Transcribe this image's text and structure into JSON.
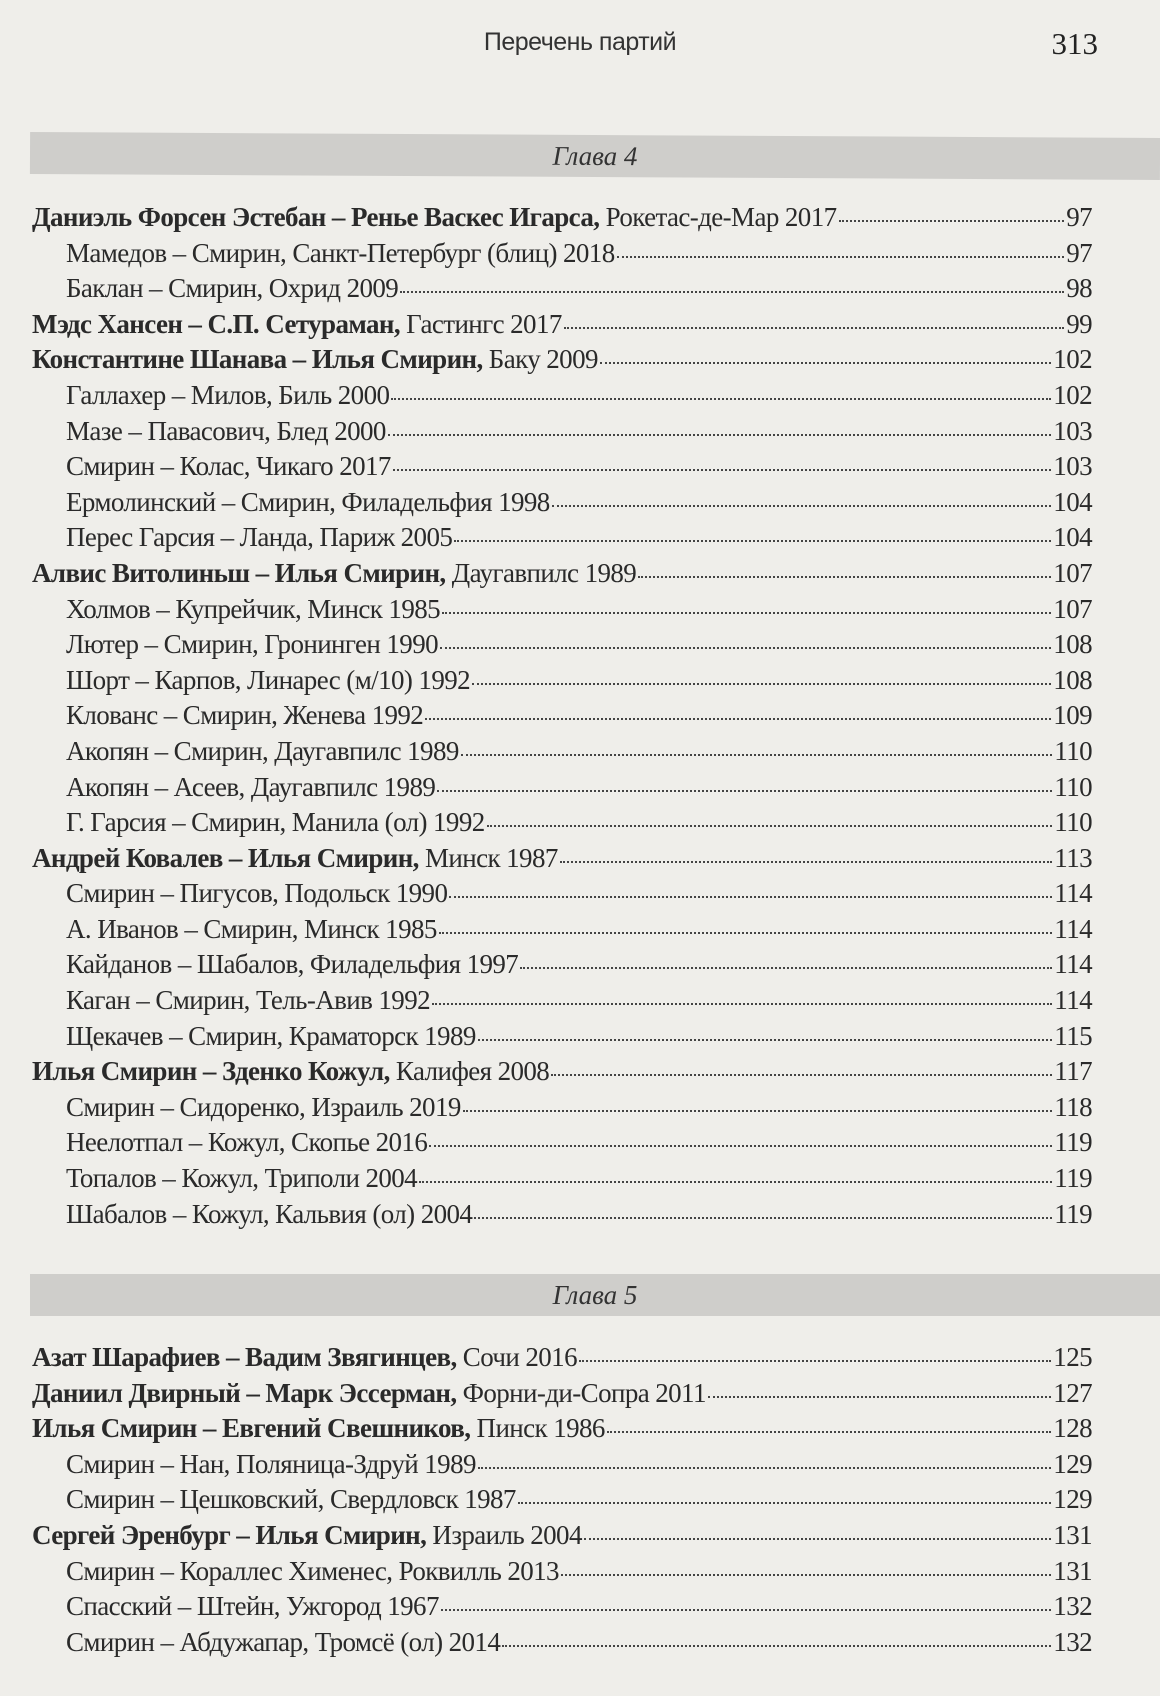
{
  "header": {
    "title": "Перечень партий",
    "page_number": "313"
  },
  "chapters": [
    {
      "title": "Глава 4",
      "entries": [
        {
          "main": true,
          "players": "Даниэль Форсен Эстебан – Ренье Васкес Игарса,",
          "event": "Рокетас-де-Мар 2017",
          "page": "97"
        },
        {
          "main": false,
          "players": "",
          "event": "Мамедов – Смирин, Санкт-Петербург (блиц) 2018",
          "page": "97"
        },
        {
          "main": false,
          "players": "",
          "event": "Баклан – Смирин, Охрид 2009",
          "page": "98"
        },
        {
          "main": true,
          "players": "Мэдс Хансен – С.П. Сетураман,",
          "event": "Гастингс 2017",
          "page": "99"
        },
        {
          "main": true,
          "players": "Константине Шанава – Илья Смирин,",
          "event": "Баку 2009",
          "page": "102"
        },
        {
          "main": false,
          "players": "",
          "event": "Галлахер – Милов, Биль 2000",
          "page": "102"
        },
        {
          "main": false,
          "players": "",
          "event": "Мазе – Павасович, Блед 2000",
          "page": "103"
        },
        {
          "main": false,
          "players": "",
          "event": "Смирин – Колас, Чикаго 2017",
          "page": "103"
        },
        {
          "main": false,
          "players": "",
          "event": "Ермолинский – Смирин, Филадельфия 1998",
          "page": "104"
        },
        {
          "main": false,
          "players": "",
          "event": "Перес Гарсия – Ланда, Париж 2005",
          "page": "104"
        },
        {
          "main": true,
          "players": "Алвис Витолиньш – Илья Смирин,",
          "event": "Даугавпилс 1989",
          "page": "107"
        },
        {
          "main": false,
          "players": "",
          "event": "Холмов – Купрейчик, Минск 1985",
          "page": "107"
        },
        {
          "main": false,
          "players": "",
          "event": "Лютер – Смирин, Гронинген 1990",
          "page": "108"
        },
        {
          "main": false,
          "players": "",
          "event": "Шорт – Карпов, Линарес (м/10) 1992",
          "page": "108"
        },
        {
          "main": false,
          "players": "",
          "event": "Клованс – Смирин, Женева 1992",
          "page": "109"
        },
        {
          "main": false,
          "players": "",
          "event": "Акопян – Смирин, Даугавпилс 1989",
          "page": "110"
        },
        {
          "main": false,
          "players": "",
          "event": "Акопян – Асеев, Даугавпилс 1989",
          "page": "110"
        },
        {
          "main": false,
          "players": "",
          "event": "Г. Гарсия – Смирин, Манила (ол) 1992",
          "page": "110"
        },
        {
          "main": true,
          "players": "Андрей Ковалев – Илья Смирин,",
          "event": "Минск 1987",
          "page": "113"
        },
        {
          "main": false,
          "players": "",
          "event": "Смирин – Пигусов, Подольск 1990",
          "page": "114"
        },
        {
          "main": false,
          "players": "",
          "event": "А. Иванов – Смирин, Минск 1985",
          "page": "114"
        },
        {
          "main": false,
          "players": "",
          "event": "Кайданов – Шабалов, Филадельфия 1997",
          "page": "114"
        },
        {
          "main": false,
          "players": "",
          "event": "Каган – Смирин, Тель-Авив 1992",
          "page": "114"
        },
        {
          "main": false,
          "players": "",
          "event": "Щекачев – Смирин, Краматорск 1989",
          "page": "115"
        },
        {
          "main": true,
          "players": "Илья Смирин – Зденко Кожул,",
          "event": "Калифея 2008",
          "page": "117"
        },
        {
          "main": false,
          "players": "",
          "event": "Смирин – Сидоренко, Израиль 2019",
          "page": "118"
        },
        {
          "main": false,
          "players": "",
          "event": "Неелотпал – Кожул, Скопье 2016",
          "page": "119"
        },
        {
          "main": false,
          "players": "",
          "event": "Топалов – Кожул, Триполи 2004",
          "page": "119"
        },
        {
          "main": false,
          "players": "",
          "event": "Шабалов – Кожул, Кальвия (ол) 2004",
          "page": "119"
        }
      ]
    },
    {
      "title": "Глава 5",
      "entries": [
        {
          "main": true,
          "players": "Азат Шарафиев – Вадим Звягинцев,",
          "event": "Сочи 2016",
          "page": "125"
        },
        {
          "main": true,
          "players": "Даниил Двирный – Марк Эссерман,",
          "event": "Форни-ди-Сопра 2011",
          "page": "127"
        },
        {
          "main": true,
          "players": "Илья Смирин – Евгений Свешников,",
          "event": "Пинск 1986",
          "page": "128"
        },
        {
          "main": false,
          "players": "",
          "event": "Смирин – Нан, Поляница-Здруй 1989",
          "page": "129"
        },
        {
          "main": false,
          "players": "",
          "event": "Смирин – Цешковский, Свердловск 1987",
          "page": "129"
        },
        {
          "main": true,
          "players": "Сергей Эренбург – Илья Смирин,",
          "event": "Израиль 2004",
          "page": "131"
        },
        {
          "main": false,
          "players": "",
          "event": "Смирин – Кораллес Хименес, Роквилль 2013",
          "page": "131"
        },
        {
          "main": false,
          "players": "",
          "event": "Спасский – Штейн, Ужгород 1967",
          "page": "132"
        },
        {
          "main": false,
          "players": "",
          "event": "Смирин – Абдужапар, Тромсё (ол) 2014",
          "page": "132"
        }
      ]
    }
  ]
}
